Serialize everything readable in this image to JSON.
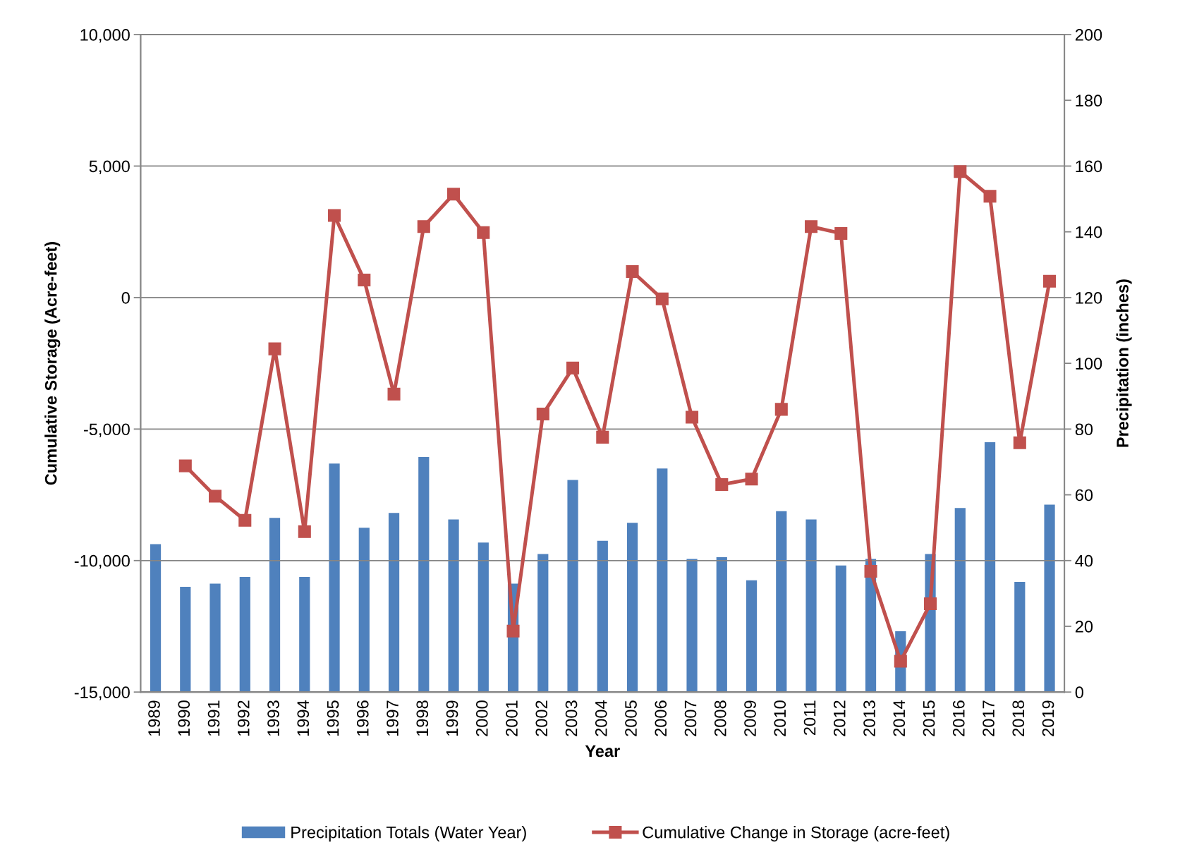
{
  "chart_data": {
    "type": "bar",
    "xlabel": "Year",
    "ylabel": "Cumulative Storage (Acre-feet)",
    "y2label": "Precipitation (inches)",
    "categories": [
      "1989",
      "1990",
      "1991",
      "1992",
      "1993",
      "1994",
      "1995",
      "1996",
      "1997",
      "1998",
      "1999",
      "2000",
      "2001",
      "2002",
      "2003",
      "2004",
      "2005",
      "2006",
      "2007",
      "2008",
      "2009",
      "2010",
      "2011",
      "2012",
      "2013",
      "2014",
      "2015",
      "2016",
      "2017",
      "2018",
      "2019"
    ],
    "series": [
      {
        "name": "Precipitation Totals (Water Year)",
        "axis": "y2",
        "color": "#4f81bd",
        "values": [
          45,
          32,
          33,
          35,
          53,
          35,
          69.5,
          50,
          54.5,
          71.5,
          52.5,
          45.5,
          33,
          42,
          64.5,
          46,
          51.5,
          68,
          40.5,
          41,
          34,
          55,
          52.5,
          38.5,
          40.5,
          18.5,
          42,
          56,
          76,
          33.5,
          57
        ]
      },
      {
        "name": "Cumulative Change in Storage (acre-feet)",
        "type": "line",
        "axis": "y",
        "color": "#c0504d",
        "values": [
          null,
          -6400,
          -7550,
          -8470,
          -1950,
          -8900,
          3120,
          670,
          -3670,
          2700,
          3930,
          2470,
          -12680,
          -4430,
          -2680,
          -5310,
          990,
          -50,
          -4550,
          -7110,
          -6900,
          -4250,
          2700,
          2440,
          -10410,
          -13830,
          -11640,
          4790,
          3850,
          -5520,
          620
        ]
      }
    ],
    "ylim": [
      -15000,
      10000
    ],
    "yticks": [
      {
        "value": -15000,
        "label": "-15,000"
      },
      {
        "value": -10000,
        "label": "-10,000"
      },
      {
        "value": -5000,
        "label": "-5,000"
      },
      0,
      {
        "value": 5000,
        "label": "5,000"
      },
      {
        "value": 10000,
        "label": "10,000"
      }
    ],
    "y2lim": [
      0,
      200
    ],
    "y2ticks": [
      0,
      20,
      40,
      60,
      80,
      100,
      120,
      140,
      160,
      180,
      200
    ],
    "grid": "y",
    "legend": "bottom",
    "marker": "square",
    "line_style": "solid"
  }
}
